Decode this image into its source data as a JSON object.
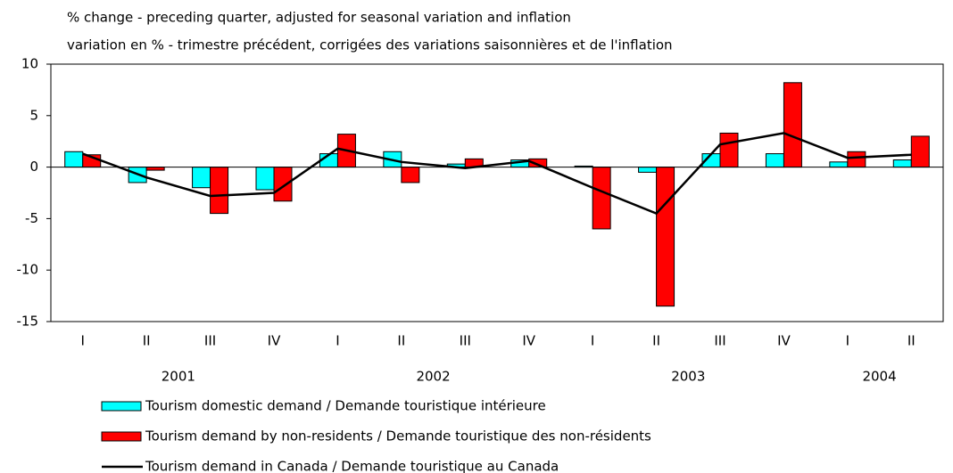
{
  "chart_data": {
    "type": "bar_line",
    "title": "% change - preceding quarter, adjusted for seasonal variation and inflation",
    "subtitle": "variation en % - trimestre précédent, corrigées des variations saisonnières et de l'inflation",
    "categories": [
      "I",
      "II",
      "III",
      "IV",
      "I",
      "II",
      "III",
      "IV",
      "I",
      "II",
      "III",
      "IV",
      "I",
      "II"
    ],
    "year_groups": [
      {
        "label": "2001",
        "quarters": 4
      },
      {
        "label": "2002",
        "quarters": 4
      },
      {
        "label": "2003",
        "quarters": 4
      },
      {
        "label": "2004",
        "quarters": 2
      }
    ],
    "series": [
      {
        "name": "Tourism domestic demand / Demande touristique intérieure",
        "type": "bar",
        "color": "#00ffff",
        "values": [
          1.5,
          -1.5,
          -2.0,
          -2.2,
          1.3,
          1.5,
          0.3,
          0.7,
          0.1,
          -0.5,
          1.3,
          1.3,
          0.5,
          0.7
        ]
      },
      {
        "name": "Tourism demand by non-residents / Demande touristique des non-résidents",
        "type": "bar",
        "color": "#ff0000",
        "values": [
          1.2,
          -0.3,
          -4.5,
          -3.3,
          3.2,
          -1.5,
          0.8,
          0.8,
          -6.0,
          -13.5,
          3.3,
          8.2,
          1.5,
          3.0
        ]
      },
      {
        "name": "Tourism demand in Canada / Demande touristique au Canada",
        "type": "line",
        "color": "#000000",
        "values": [
          1.3,
          -1.0,
          -2.8,
          -2.5,
          1.8,
          0.5,
          -0.1,
          0.6,
          -2.0,
          -4.5,
          2.2,
          3.3,
          0.9,
          1.2
        ]
      }
    ],
    "ylim": [
      -15,
      10
    ],
    "yticks": [
      -15,
      -10,
      -5,
      0,
      5,
      10
    ]
  }
}
